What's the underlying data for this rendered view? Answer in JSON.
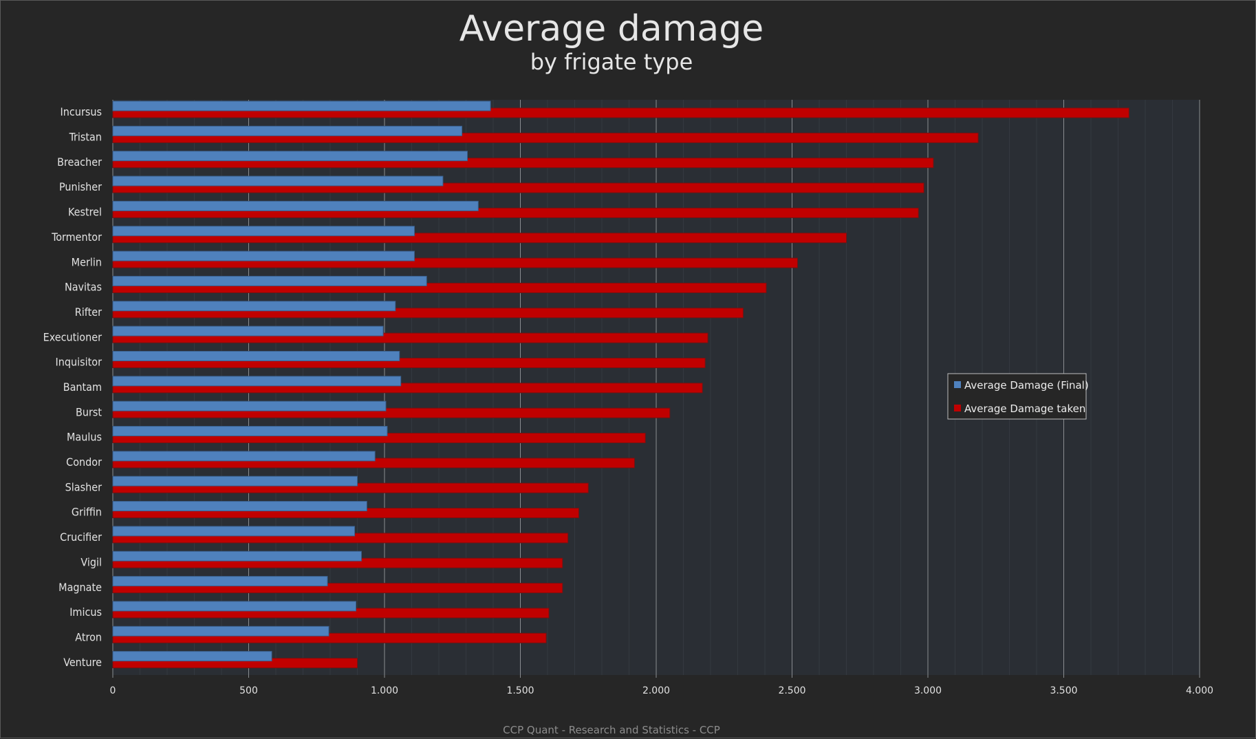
{
  "chart_data": {
    "type": "bar",
    "orientation": "horizontal",
    "title": "Average damage",
    "subtitle": "by frigate type",
    "footer": "CCP Quant - Research and Statistics - CCP",
    "categories": [
      "Incursus",
      "Tristan",
      "Breacher",
      "Punisher",
      "Kestrel",
      "Tormentor",
      "Merlin",
      "Navitas",
      "Rifter",
      "Executioner",
      "Inquisitor",
      "Bantam",
      "Burst",
      "Maulus",
      "Condor",
      "Slasher",
      "Griffin",
      "Crucifier",
      "Vigil",
      "Magnate",
      "Imicus",
      "Atron",
      "Venture"
    ],
    "series": [
      {
        "name": "Average Damage (Final)",
        "color": "#4f81bd",
        "values": [
          1390,
          1285,
          1305,
          1215,
          1345,
          1110,
          1110,
          1155,
          1040,
          995,
          1055,
          1060,
          1005,
          1010,
          965,
          900,
          935,
          890,
          915,
          790,
          895,
          795,
          585
        ]
      },
      {
        "name": "Average Damage taken",
        "color": "#c00000",
        "values": [
          3740,
          3185,
          3020,
          2985,
          2965,
          2700,
          2520,
          2405,
          2320,
          2190,
          2180,
          2170,
          2050,
          1960,
          1920,
          1750,
          1715,
          1675,
          1655,
          1655,
          1605,
          1595,
          900
        ]
      }
    ],
    "xlim": [
      0,
      4000
    ],
    "xticks": [
      0,
      500,
      1000,
      1500,
      2000,
      2500,
      3000,
      3500,
      4000
    ],
    "xtick_labels": [
      "0",
      "500",
      "1.000",
      "1.500",
      "2.000",
      "2.500",
      "3.000",
      "3.500",
      "4.000"
    ],
    "grid": true,
    "legend_position": "right-center"
  }
}
